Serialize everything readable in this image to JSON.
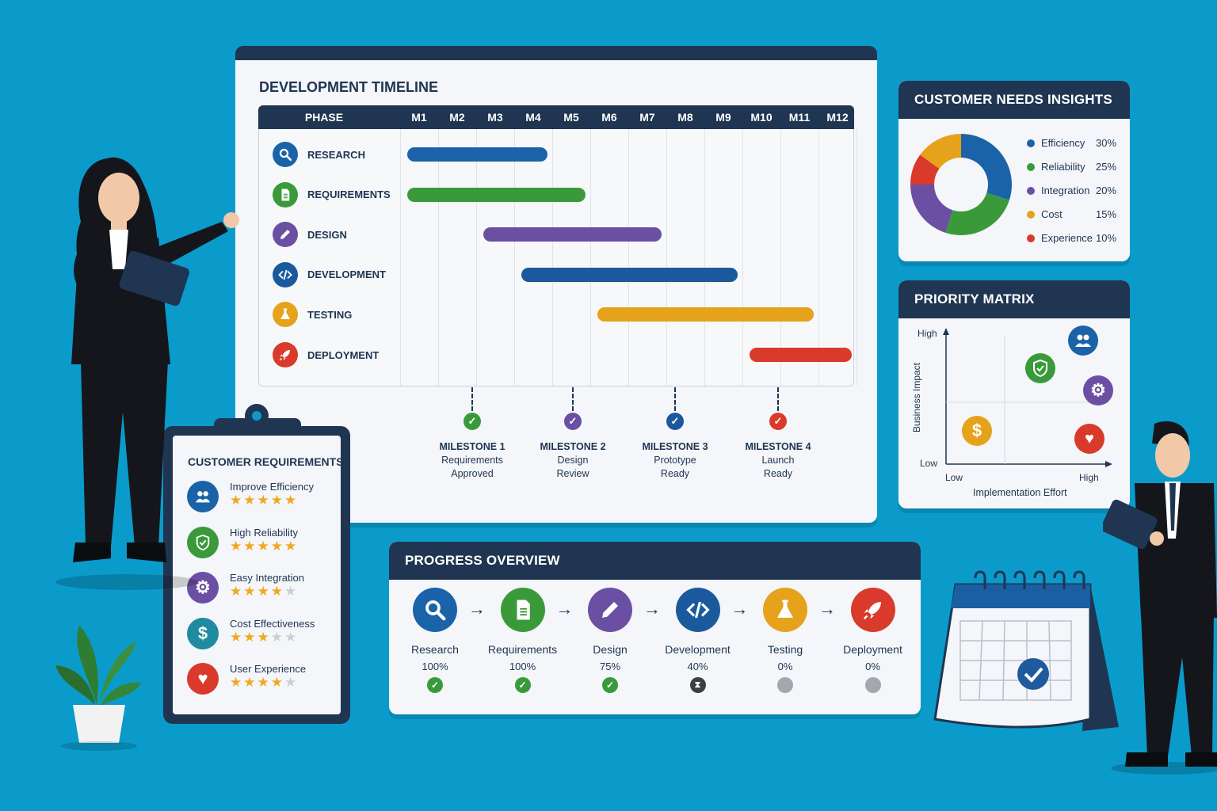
{
  "timeline": {
    "title": "DEVELOPMENT TIMELINE",
    "phase_header": "PHASE",
    "months": [
      "M1",
      "M2",
      "M3",
      "M4",
      "M5",
      "M6",
      "M7",
      "M8",
      "M9",
      "M10",
      "M11",
      "M12"
    ],
    "phases": [
      {
        "label": "RESEARCH",
        "icon": "search-icon",
        "color": "#1b63a8",
        "start": 1,
        "end": 4
      },
      {
        "label": "REQUIREMENTS",
        "icon": "document-icon",
        "color": "#3a9a3a",
        "start": 1,
        "end": 5
      },
      {
        "label": "DESIGN",
        "icon": "pencil-icon",
        "color": "#6b4fa3",
        "start": 3,
        "end": 7
      },
      {
        "label": "DEVELOPMENT",
        "icon": "code-icon",
        "color": "#1a5a9c",
        "start": 4,
        "end": 9
      },
      {
        "label": "TESTING",
        "icon": "flask-icon",
        "color": "#e6a21b",
        "start": 6,
        "end": 11
      },
      {
        "label": "DEPLOYMENT",
        "icon": "rocket-icon",
        "color": "#d93a2b",
        "start": 10,
        "end": 12
      }
    ],
    "milestones": [
      {
        "title": "MILESTONE 1",
        "line1": "Requirements",
        "line2": "Approved",
        "color": "#3a9a3a"
      },
      {
        "title": "MILESTONE 2",
        "line1": "Design",
        "line2": "Review",
        "color": "#6b4fa3"
      },
      {
        "title": "MILESTONE 3",
        "line1": "Prototype",
        "line2": "Ready",
        "color": "#1a5a9c"
      },
      {
        "title": "MILESTONE 4",
        "line1": "Launch",
        "line2": "Ready",
        "color": "#d93a2b"
      }
    ]
  },
  "insights": {
    "title": "CUSTOMER NEEDS INSIGHTS",
    "slices": [
      {
        "label": "Efficiency",
        "pct": "30%",
        "value": 30,
        "color": "#1b63a8"
      },
      {
        "label": "Reliability",
        "pct": "25%",
        "value": 25,
        "color": "#3a9a3a"
      },
      {
        "label": "Integration",
        "pct": "20%",
        "value": 20,
        "color": "#6b4fa3"
      },
      {
        "label": "Cost",
        "pct": "15%",
        "value": 15,
        "color": "#e6a21b"
      },
      {
        "label": "Experience",
        "pct": "10%",
        "value": 10,
        "color": "#d93a2b"
      }
    ]
  },
  "matrix": {
    "title": "PRIORITY MATRIX",
    "y_high": "High",
    "y_low": "Low",
    "y_label": "Business Impact",
    "x_low": "Low",
    "x_high": "High",
    "x_label": "Implementation Effort"
  },
  "requirements": {
    "title": "CUSTOMER REQUIREMENTS",
    "items": [
      {
        "label": "Improve Efficiency",
        "stars": 5,
        "icon": "users-icon",
        "color": "#1b63a8"
      },
      {
        "label": "High Reliability",
        "stars": 5,
        "icon": "shield-icon",
        "color": "#3a9a3a"
      },
      {
        "label": "Easy Integration",
        "stars": 4,
        "icon": "gear-icon",
        "color": "#6b4fa3"
      },
      {
        "label": "Cost Effectiveness",
        "stars": 3,
        "icon": "dollar-icon",
        "color": "#1f8aa0"
      },
      {
        "label": "User Experience",
        "stars": 4,
        "icon": "heart-icon",
        "color": "#d93a2b"
      }
    ]
  },
  "progress": {
    "title": "PROGRESS OVERVIEW",
    "steps": [
      {
        "label": "Research",
        "pct": "100%",
        "status": "done",
        "color": "#1b63a8",
        "icon": "search-icon"
      },
      {
        "label": "Requirements",
        "pct": "100%",
        "status": "done",
        "color": "#3a9a3a",
        "icon": "document-icon"
      },
      {
        "label": "Design",
        "pct": "75%",
        "status": "done",
        "color": "#6b4fa3",
        "icon": "pencil-icon"
      },
      {
        "label": "Development",
        "pct": "40%",
        "status": "in-progress",
        "color": "#1a5a9c",
        "icon": "code-icon"
      },
      {
        "label": "Testing",
        "pct": "0%",
        "status": "pending",
        "color": "#e6a21b",
        "icon": "flask-icon"
      },
      {
        "label": "Deployment",
        "pct": "0%",
        "status": "pending",
        "color": "#d93a2b",
        "icon": "rocket-icon"
      }
    ]
  }
}
